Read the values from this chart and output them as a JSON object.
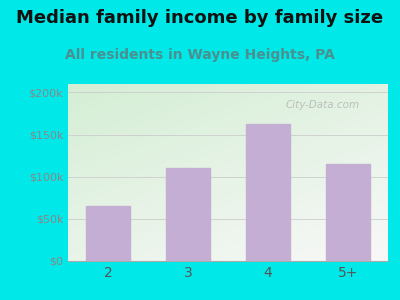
{
  "title": "Median family income by family size",
  "subtitle": "All residents in Wayne Heights, PA",
  "categories": [
    "2",
    "3",
    "4",
    "5+"
  ],
  "values": [
    65000,
    110000,
    163000,
    115000
  ],
  "bar_color": "#c4aed4",
  "title_fontsize": 13,
  "subtitle_fontsize": 10,
  "subtitle_color": "#4a9090",
  "title_color": "#111111",
  "bg_color": "#00e8e8",
  "yticks": [
    0,
    50000,
    100000,
    150000,
    200000
  ],
  "ytick_labels": [
    "$0",
    "$50k",
    "$100k",
    "$150k",
    "$200k"
  ],
  "xtick_color": "#555555",
  "ytick_color": "#888888",
  "ylim": [
    0,
    210000
  ],
  "grid_color": "#cccccc",
  "watermark": "City-Data.com",
  "plot_bg_color_topleft": "#d8eed8",
  "plot_bg_color_bottomright": "#f8f8f8"
}
